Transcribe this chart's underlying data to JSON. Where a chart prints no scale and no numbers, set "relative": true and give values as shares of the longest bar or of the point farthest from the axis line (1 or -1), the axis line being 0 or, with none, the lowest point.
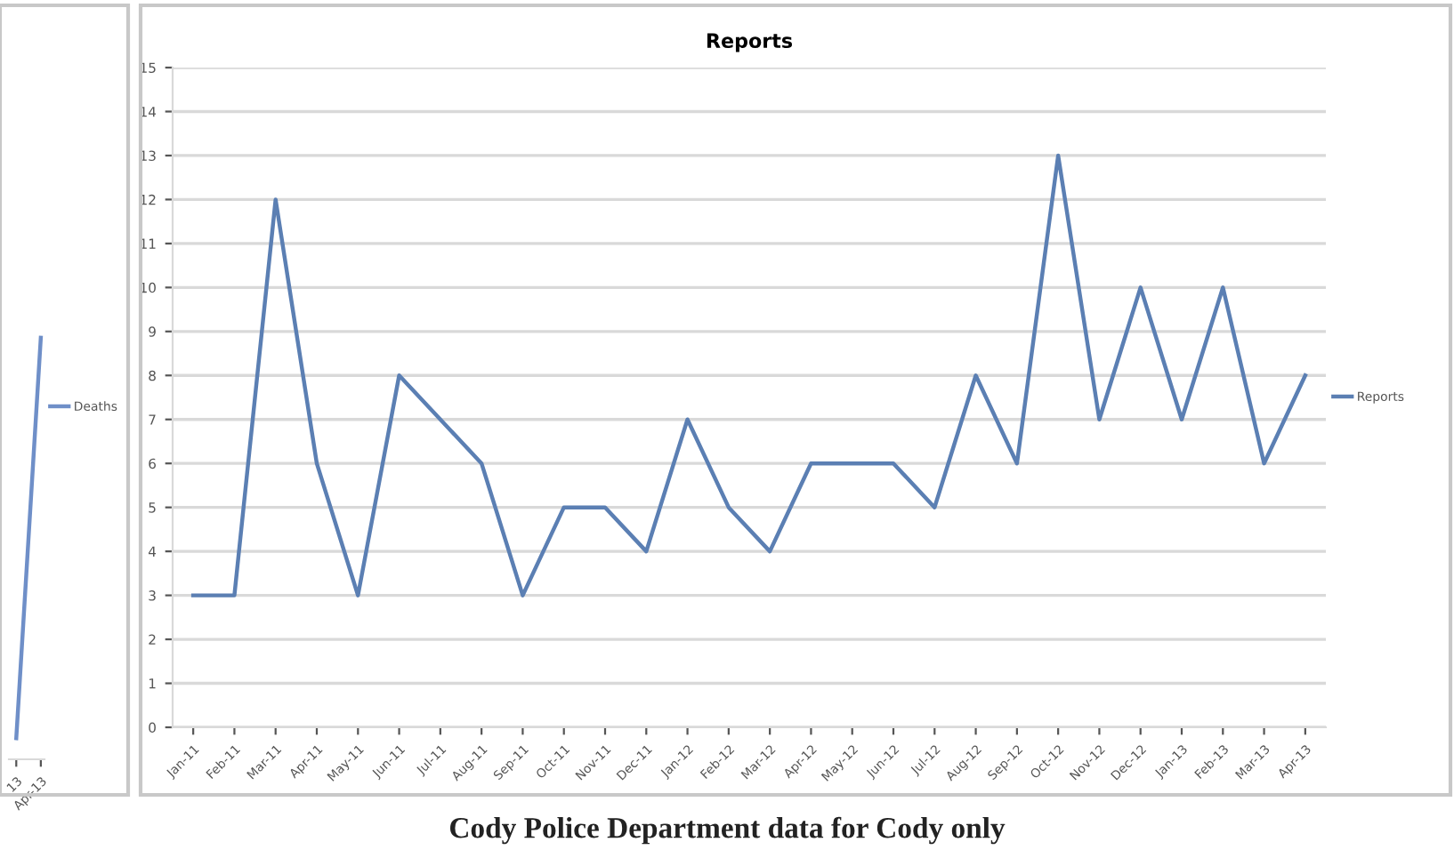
{
  "chart_data": [
    {
      "type": "line",
      "relative": true,
      "categories": [
        "13",
        "Apr-13"
      ],
      "legend": "right",
      "tick_labels": "x",
      "series": [
        {
          "name": "Deaths",
          "color": "#6f8fc8",
          "values": [
            0.05,
            1
          ]
        }
      ]
    },
    {
      "type": "line",
      "title": "Reports",
      "categories": [
        "Jan-11",
        "Feb-11",
        "Mar-11",
        "Apr-11",
        "May-11",
        "Jun-11",
        "Jul-11",
        "Aug-11",
        "Sep-11",
        "Oct-11",
        "Nov-11",
        "Dec-11",
        "Jan-12",
        "Feb-12",
        "Mar-12",
        "Apr-12",
        "May-12",
        "Jun-12",
        "Jul-12",
        "Aug-12",
        "Sep-12",
        "Oct-12",
        "Nov-12",
        "Dec-12",
        "Jan-13",
        "Feb-13",
        "Mar-13",
        "Apr-13"
      ],
      "ylim": [
        0,
        15
      ],
      "yticks": [
        0,
        1,
        2,
        3,
        4,
        5,
        6,
        7,
        8,
        9,
        10,
        11,
        12,
        13,
        14,
        15
      ],
      "grid": "y",
      "legend": "right",
      "annotations": [
        "Cody Police Department data for Cody only"
      ],
      "series": [
        {
          "name": "Reports",
          "color": "#5b7fb3",
          "values": [
            3,
            3,
            12,
            6,
            3,
            8,
            7,
            6,
            3,
            5,
            5,
            4,
            7,
            5,
            4,
            6,
            6,
            6,
            5,
            8,
            6,
            13,
            7,
            10,
            7,
            10,
            6,
            8
          ]
        }
      ]
    }
  ]
}
